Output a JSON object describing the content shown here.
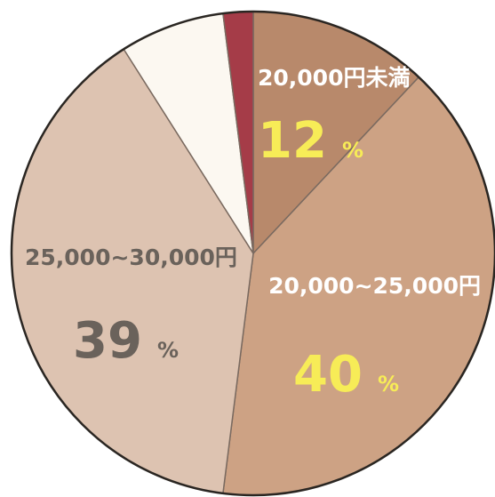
{
  "chart_data": {
    "type": "pie",
    "title": "",
    "start_angle_deg": 0,
    "direction": "clockwise",
    "slices": [
      {
        "key": "under_20000",
        "label": "20,000円未満",
        "value": 12,
        "percent_text": "12",
        "percent_sign": "%",
        "color": "#b8896b",
        "label_color": "#ffffff",
        "percent_color": "#f7ec57"
      },
      {
        "key": "20000_25000",
        "label": "20,000~25,000円",
        "value": 40,
        "percent_text": "40",
        "percent_sign": "%",
        "color": "#cda284",
        "label_color": "#ffffff",
        "percent_color": "#f7ec57"
      },
      {
        "key": "25000_30000",
        "label": "25,000~30,000円",
        "value": 39,
        "percent_text": "39",
        "percent_sign": "%",
        "color": "#ddc3b1",
        "label_color": "#6a625b",
        "percent_color": "#6a625b"
      },
      {
        "key": "slice_cream",
        "label": "",
        "value": 7,
        "percent_text": "",
        "percent_sign": "",
        "color": "#fcf8f1"
      },
      {
        "key": "slice_red",
        "label": "",
        "value": 2,
        "percent_text": "",
        "percent_sign": "",
        "color": "#a53c48"
      }
    ]
  }
}
